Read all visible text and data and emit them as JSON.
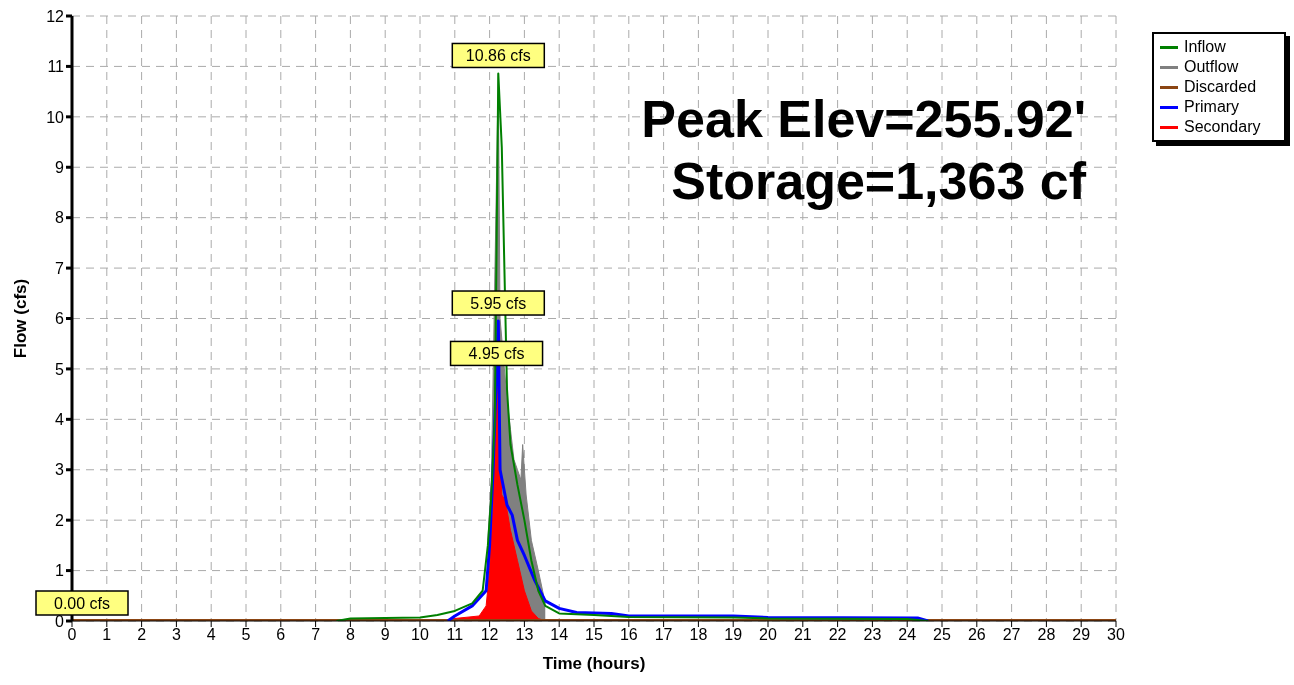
{
  "chart_data": {
    "type": "line",
    "xlabel": "Time  (hours)",
    "ylabel": "Flow  (cfs)",
    "xlim": [
      0,
      30
    ],
    "xticks": [
      0,
      1,
      2,
      3,
      4,
      5,
      6,
      7,
      8,
      9,
      10,
      11,
      12,
      13,
      14,
      15,
      16,
      17,
      18,
      19,
      20,
      21,
      22,
      23,
      24,
      25,
      26,
      27,
      28,
      29,
      30
    ],
    "ylim": [
      0,
      12
    ],
    "yticks": [
      0,
      1,
      2,
      3,
      4,
      5,
      6,
      7,
      8,
      9,
      10,
      11,
      12
    ],
    "grid": true,
    "legend": "top right",
    "line_style": "solid",
    "series": [
      {
        "name": "Inflow",
        "color": "#008000",
        "x": [
          7.6,
          8,
          9,
          10,
          10.5,
          11,
          11.5,
          11.8,
          11.95,
          12.05,
          12.15,
          12.25,
          12.35,
          12.5,
          12.6,
          12.8,
          13,
          13.2,
          13.4,
          13.6,
          14,
          15,
          16,
          19,
          20,
          24,
          24.6
        ],
        "values": [
          0,
          0.05,
          0.06,
          0.07,
          0.12,
          0.2,
          0.35,
          0.6,
          1.5,
          2.5,
          4,
          10.86,
          9.4,
          4.6,
          3.5,
          2.7,
          2,
          1.2,
          0.6,
          0.3,
          0.15,
          0.12,
          0.08,
          0.07,
          0.05,
          0.04,
          0
        ]
      },
      {
        "name": "Outflow",
        "color": "#808080",
        "type": "area",
        "x": [
          11.95,
          12.05,
          12.25,
          12.3,
          12.5,
          12.6,
          12.7,
          12.8,
          12.9,
          12.95,
          13.05,
          13.2,
          13.4,
          13.6
        ],
        "values": [
          1.6,
          2.8,
          10.86,
          6,
          4.4,
          3.8,
          3.2,
          3,
          2.8,
          3.5,
          2.5,
          1.6,
          1,
          0.35
        ]
      },
      {
        "name": "Discarded",
        "color": "#8b4513",
        "x": [
          0,
          30
        ],
        "values": [
          0,
          0
        ]
      },
      {
        "name": "Primary",
        "color": "#0000ff",
        "x": [
          10.8,
          11,
          11.5,
          11.9,
          12,
          12.1,
          12.25,
          12.3,
          12.5,
          12.65,
          12.8,
          13,
          13.3,
          13.6,
          14,
          14.5,
          15.5,
          16,
          19,
          20,
          24.3,
          24.6
        ],
        "values": [
          0,
          0.1,
          0.3,
          0.6,
          1.5,
          3,
          5.95,
          3,
          2.3,
          2.1,
          1.6,
          1.3,
          0.8,
          0.4,
          0.25,
          0.17,
          0.15,
          0.1,
          0.1,
          0.07,
          0.06,
          0
        ]
      },
      {
        "name": "Secondary",
        "color": "#ff0000",
        "type": "area",
        "x": [
          10.5,
          11,
          11.7,
          11.9,
          12,
          12.1,
          12.2,
          12.35,
          12.45,
          12.6,
          12.8,
          13,
          13.2,
          13.4,
          13.6
        ],
        "values": [
          0,
          0.05,
          0.1,
          0.3,
          1,
          2.2,
          4.95,
          2.5,
          2.4,
          1.8,
          1.2,
          0.6,
          0.2,
          0.05,
          0
        ]
      }
    ],
    "annotations": [
      {
        "text": "10.86 cfs",
        "x": 12.25,
        "y": 10.86
      },
      {
        "text": "5.95 cfs",
        "x": 12.25,
        "y": 5.95
      },
      {
        "text": "4.95 cfs",
        "x": 12.2,
        "y": 4.95
      },
      {
        "text": "0.00 cfs",
        "x": 0,
        "y": 0
      },
      "Peak Elev=255.92'",
      "Storage=1,363 cf"
    ]
  }
}
